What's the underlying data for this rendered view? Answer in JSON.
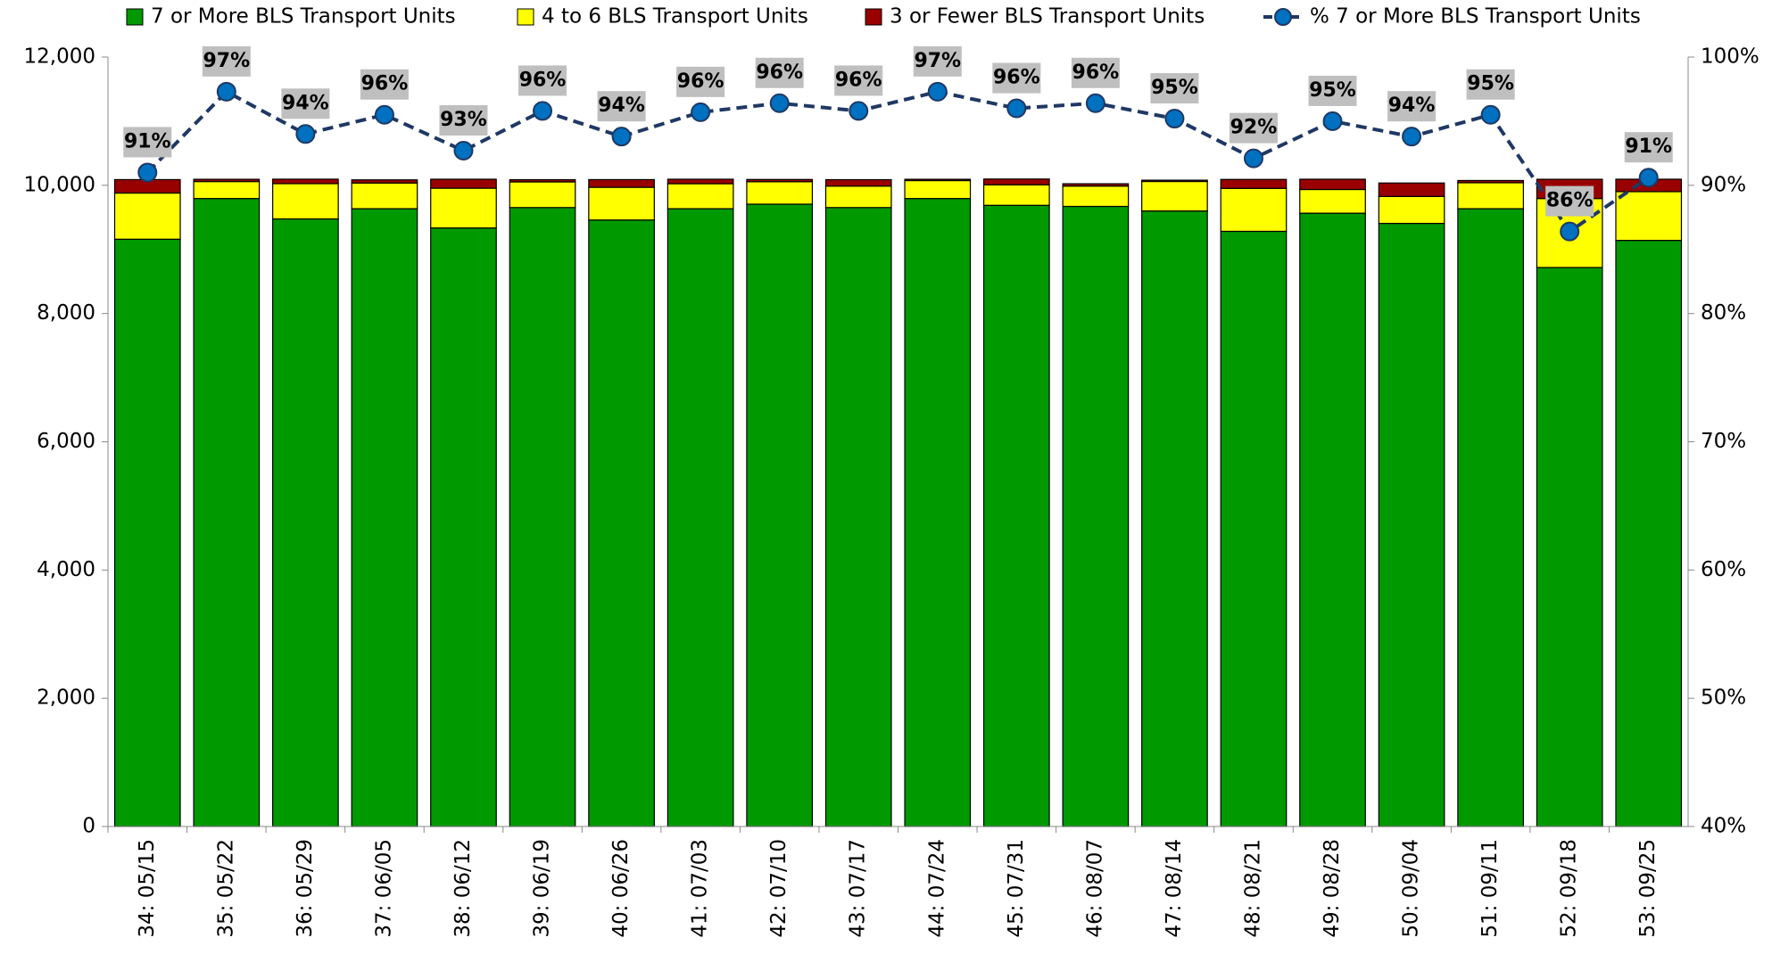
{
  "chart_data": {
    "type": "bar",
    "stacked": true,
    "categories": [
      "34: 05/15",
      "35: 05/22",
      "36: 05/29",
      "37: 06/05",
      "38: 06/12",
      "39: 06/19",
      "40: 06/26",
      "41: 07/03",
      "42: 07/10",
      "43: 07/17",
      "44: 07/24",
      "45: 07/31",
      "46: 08/07",
      "47: 08/14",
      "48: 08/21",
      "49: 08/28",
      "50: 09/04",
      "51: 09/11",
      "52: 09/18",
      "53: 09/25"
    ],
    "series": [
      {
        "name": "7 or More BLS Transport Units",
        "type": "bar",
        "color": "#009900",
        "values": [
          9159,
          9794,
          9476,
          9635,
          9335,
          9653,
          9459,
          9635,
          9706,
          9653,
          9794,
          9688,
          9671,
          9600,
          9282,
          9565,
          9406,
          9635,
          8718,
          9141
        ]
      },
      {
        "name": "4 to 6 BLS Transport Units",
        "type": "bar",
        "color": "#ffff00",
        "values": [
          720,
          265,
          550,
          400,
          620,
          400,
          510,
          390,
          350,
          335,
          280,
          320,
          317,
          460,
          670,
          370,
          420,
          405,
          1076,
          760
        ]
      },
      {
        "name": "3 or Fewer BLS Transport Units",
        "type": "bar",
        "color": "#990000",
        "values": [
          210,
          35,
          70,
          50,
          140,
          35,
          120,
          70,
          35,
          100,
          20,
          90,
          36,
          20,
          140,
          160,
          210,
          35,
          300,
          194
        ]
      },
      {
        "name": "% 7 or More BLS Transport Units",
        "type": "line",
        "axis": "y2",
        "color": "#0070c0",
        "line_color": "#1f3864",
        "values": [
          91.0,
          97.3,
          94.0,
          95.5,
          92.7,
          95.8,
          93.8,
          95.7,
          96.4,
          95.8,
          97.3,
          96.0,
          96.4,
          95.2,
          92.1,
          95.0,
          93.8,
          95.5,
          86.4,
          90.6
        ],
        "value_labels": [
          "91%",
          "97%",
          "94%",
          "96%",
          "93%",
          "96%",
          "94%",
          "96%",
          "96%",
          "96%",
          "97%",
          "96%",
          "96%",
          "95%",
          "92%",
          "95%",
          "94%",
          "95%",
          "86%",
          "91%"
        ]
      }
    ],
    "ylim": [
      0,
      12000
    ],
    "yticks": [
      0,
      {
        "value": 2000,
        "label": "2,000"
      },
      {
        "value": 4000,
        "label": "4,000"
      },
      {
        "value": 6000,
        "label": "6,000"
      },
      {
        "value": 8000,
        "label": "8,000"
      },
      {
        "value": 10000,
        "label": "10,000"
      },
      {
        "value": 12000,
        "label": "12,000"
      }
    ],
    "y2lim": [
      40,
      100
    ],
    "y2ticks": [
      {
        "value": 40,
        "label": "40%"
      },
      {
        "value": 50,
        "label": "50%"
      },
      {
        "value": 60,
        "label": "60%"
      },
      {
        "value": 70,
        "label": "70%"
      },
      {
        "value": 80,
        "label": "80%"
      },
      {
        "value": 90,
        "label": "90%"
      },
      {
        "value": 100,
        "label": "100%"
      }
    ],
    "legend": "top"
  }
}
